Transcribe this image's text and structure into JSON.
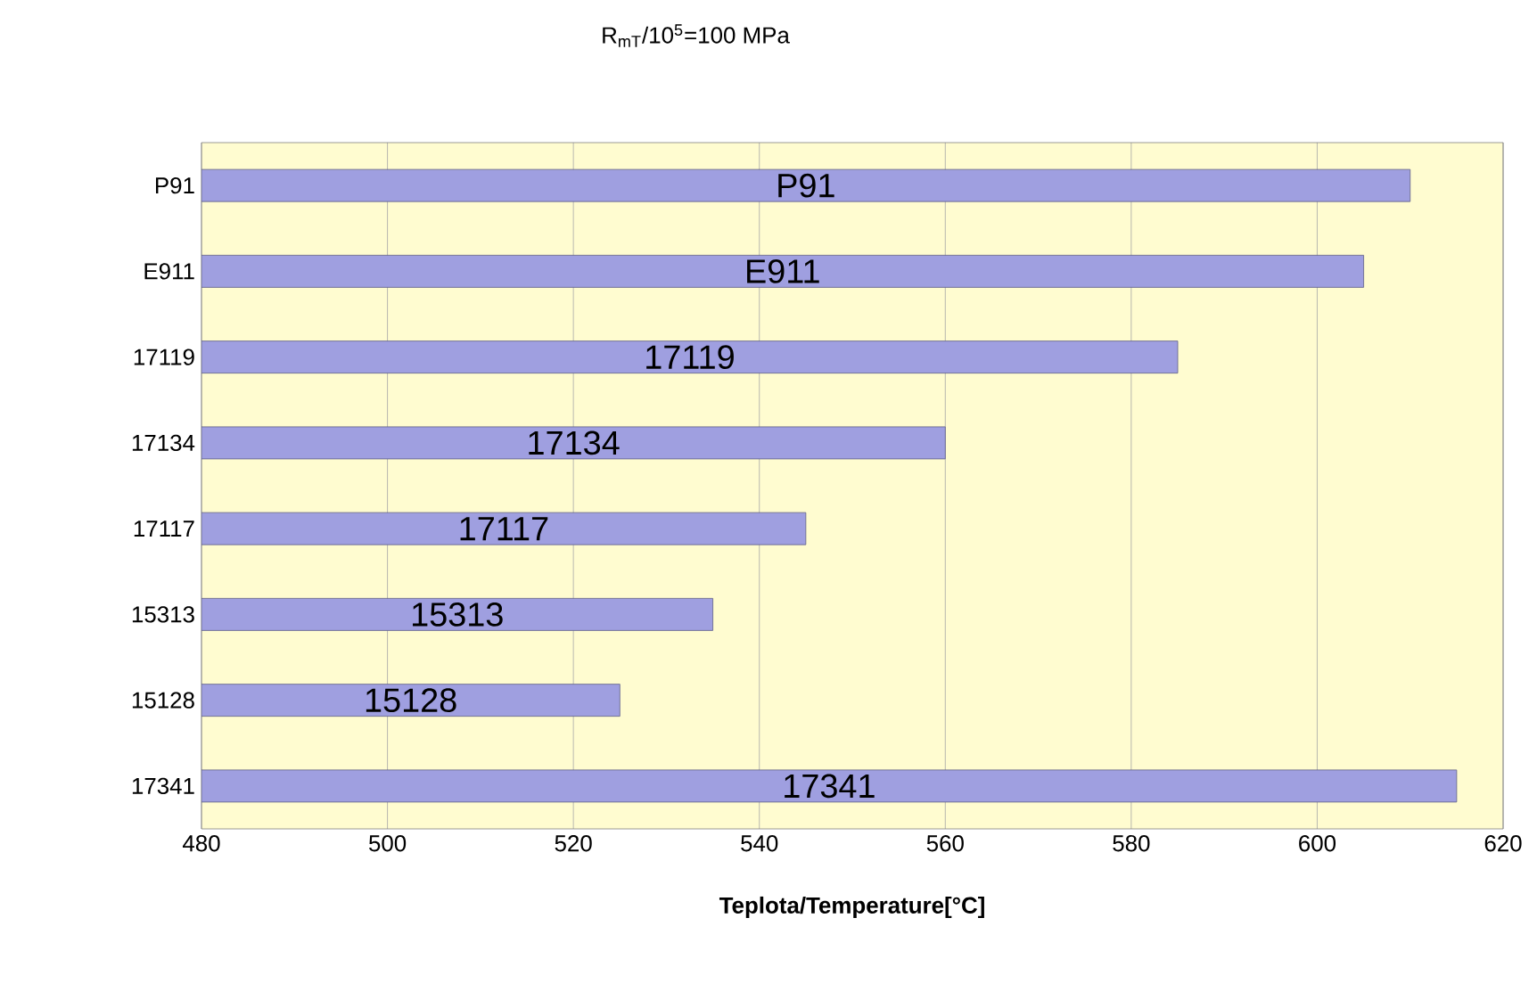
{
  "chart_data": {
    "type": "bar",
    "orientation": "horizontal",
    "title": "R$_{mT}$/10$^{5}$=100 MPa",
    "xlabel": "Teplota/Temperature[°C]",
    "categories": [
      "P91",
      "E911",
      "17119",
      "17134",
      "17117",
      "15313",
      "15128",
      "17341"
    ],
    "values": [
      610,
      605,
      585,
      560,
      545,
      535,
      525,
      615
    ],
    "annotations": [
      "P91",
      "E911",
      "17119",
      "17134",
      "17117",
      "15313",
      "15128",
      "17341"
    ],
    "color": "#9f9fe0",
    "xlim": [
      480,
      620
    ],
    "xticks": [
      480,
      500,
      520,
      540,
      560,
      580,
      600,
      620
    ],
    "grid": "x"
  }
}
